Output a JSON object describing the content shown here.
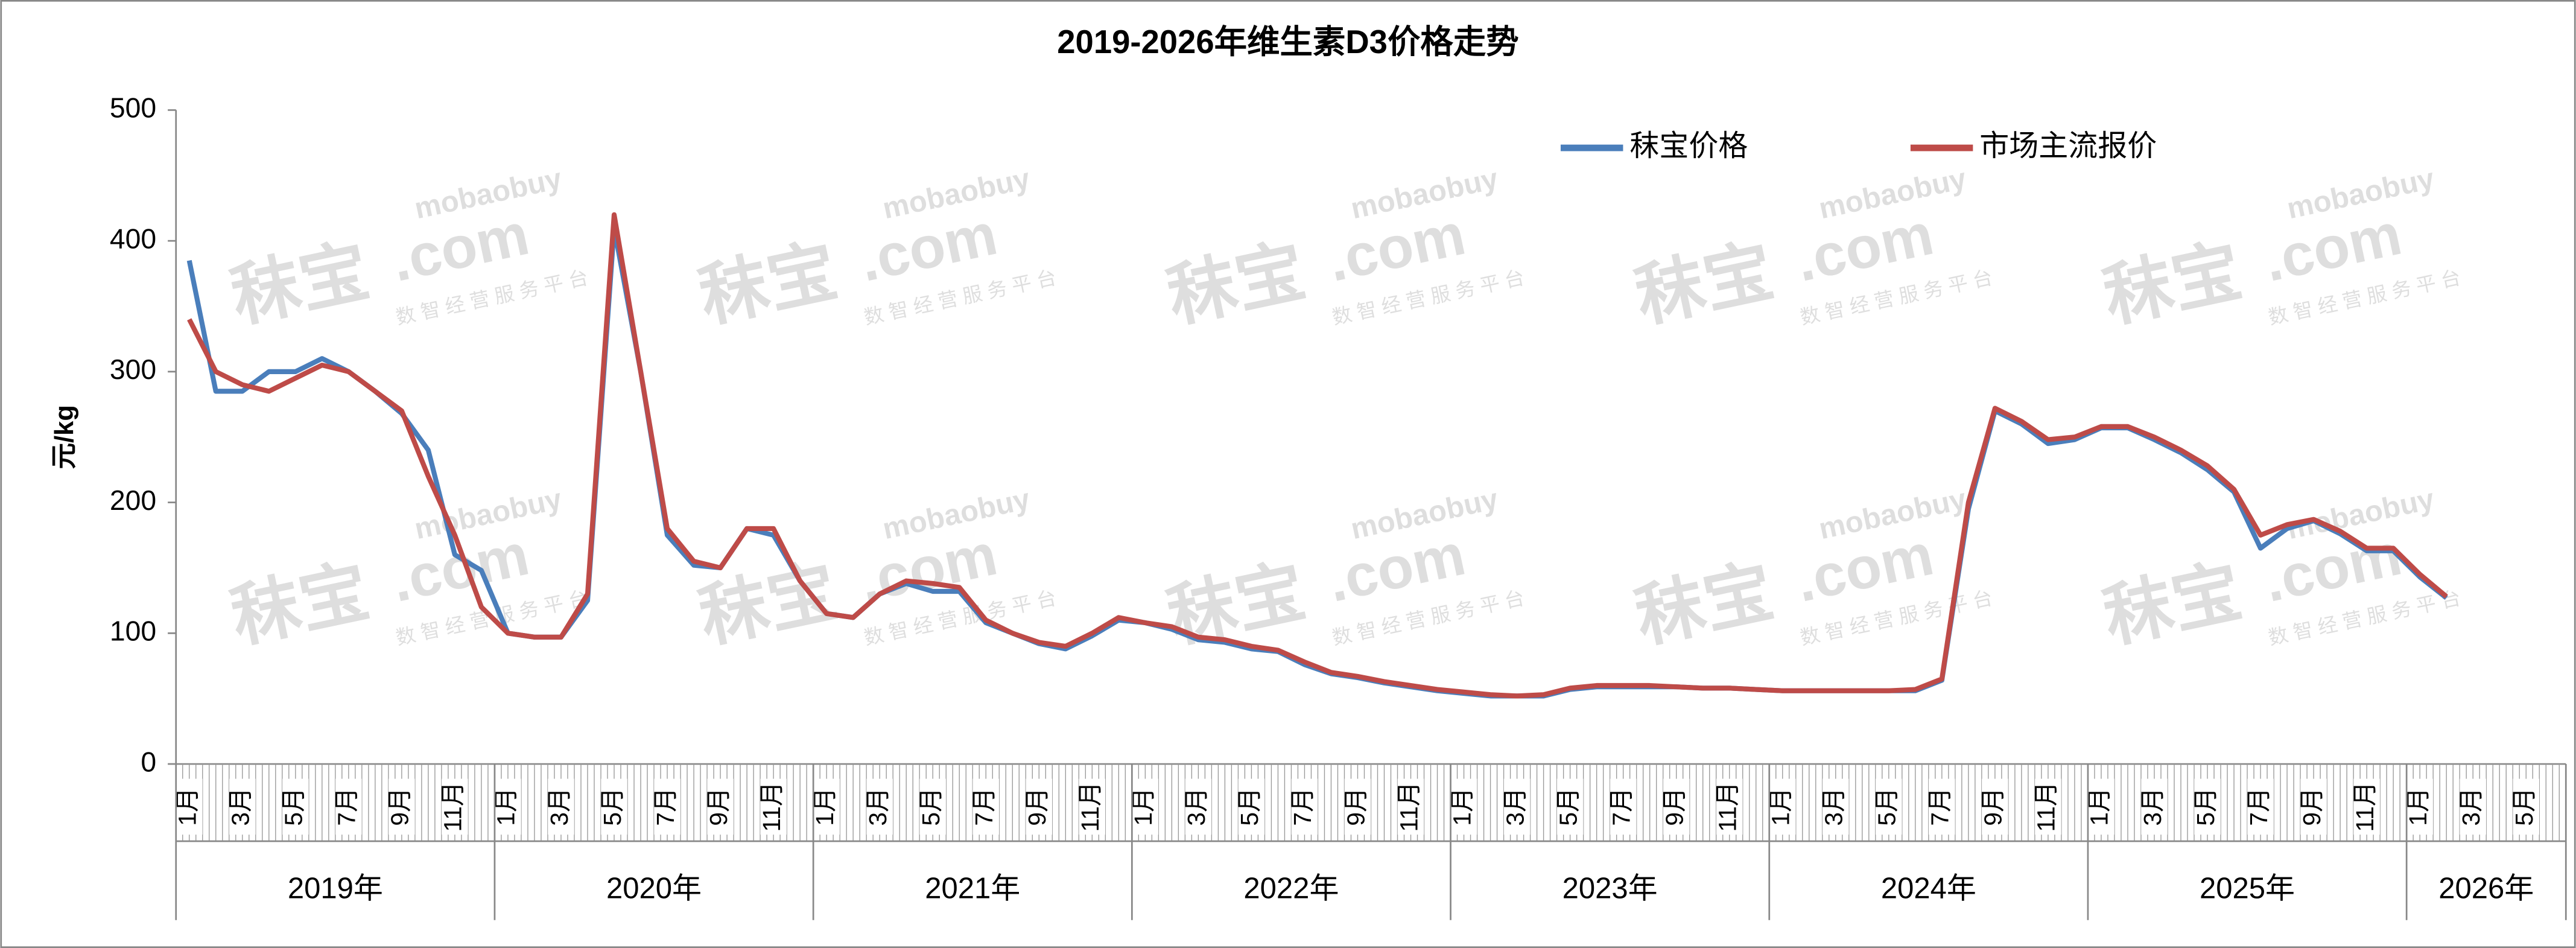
{
  "chart_data": {
    "type": "line",
    "title": "2019-2026年维生素D3价格走势",
    "y_label": "元/kg",
    "ylim": [
      0,
      500
    ],
    "yticks": [
      0,
      100,
      200,
      300,
      400,
      500
    ],
    "legend": "top-right",
    "categories": [
      "1月",
      null,
      "3月",
      null,
      "5月",
      null,
      "7月",
      null,
      "9月",
      null,
      "11月",
      null,
      "1月",
      null,
      "3月",
      null,
      "5月",
      null,
      "7月",
      null,
      "9月",
      null,
      "11月",
      null,
      "1月",
      null,
      "3月",
      null,
      "5月",
      null,
      "7月",
      null,
      "9月",
      null,
      "11月",
      null,
      "1月",
      null,
      "3月",
      null,
      "5月",
      null,
      "7月",
      null,
      "9月",
      null,
      "11月",
      null,
      "1月",
      null,
      "3月",
      null,
      "5月",
      null,
      "7月",
      null,
      "9月",
      null,
      "11月",
      null,
      "1月",
      null,
      "3月",
      null,
      "5月",
      null,
      "7月",
      null,
      "9月",
      null,
      "11月",
      null,
      "1月",
      null,
      "3月",
      null,
      "5月",
      null,
      "7月",
      null,
      "9月",
      null,
      "11月",
      null,
      "1月",
      null,
      "3月",
      null,
      "5月",
      null
    ],
    "x_groups": [
      {
        "label": "2019年",
        "span": 12
      },
      {
        "label": "2020年",
        "span": 12
      },
      {
        "label": "2021年",
        "span": 12
      },
      {
        "label": "2022年",
        "span": 12
      },
      {
        "label": "2023年",
        "span": 12
      },
      {
        "label": "2024年",
        "span": 12
      },
      {
        "label": "2025年",
        "span": 12
      },
      {
        "label": "2026年",
        "span": 6
      }
    ],
    "series": [
      {
        "name": "秣宝价格",
        "color": "#4a7ebb",
        "values": [
          385,
          285,
          285,
          300,
          300,
          310,
          300,
          285,
          268,
          240,
          160,
          148,
          100,
          97,
          97,
          125,
          410,
          300,
          175,
          152,
          150,
          180,
          175,
          140,
          115,
          112,
          130,
          138,
          132,
          132,
          108,
          100,
          92,
          88,
          98,
          110,
          108,
          103,
          95,
          93,
          88,
          86,
          76,
          69,
          66,
          62,
          59,
          56,
          54,
          52,
          52,
          52,
          57,
          59,
          59,
          59,
          59,
          58,
          58,
          57,
          56,
          56,
          56,
          56,
          56,
          56,
          64,
          195,
          270,
          260,
          245,
          248,
          257,
          257,
          248,
          238,
          225,
          208,
          165,
          180,
          186,
          176,
          163,
          163,
          143,
          127,
          null,
          null,
          null,
          null
        ]
      },
      {
        "name": "市场主流报价",
        "color": "#be4b48",
        "values": [
          340,
          300,
          290,
          285,
          295,
          305,
          300,
          285,
          270,
          220,
          175,
          120,
          100,
          97,
          97,
          130,
          420,
          300,
          180,
          155,
          150,
          180,
          180,
          140,
          115,
          112,
          130,
          140,
          138,
          135,
          110,
          100,
          93,
          90,
          100,
          112,
          108,
          105,
          97,
          95,
          90,
          87,
          78,
          70,
          67,
          63,
          60,
          57,
          55,
          53,
          52,
          53,
          58,
          60,
          60,
          60,
          59,
          58,
          58,
          57,
          56,
          56,
          56,
          56,
          56,
          57,
          65,
          200,
          272,
          262,
          248,
          250,
          258,
          258,
          250,
          240,
          228,
          210,
          175,
          183,
          187,
          178,
          165,
          165,
          145,
          128,
          null,
          null,
          null,
          null
        ]
      }
    ],
    "watermark": {
      "brand": "秣宝",
      "domain": ".com",
      "site": "mobaobuy",
      "slogan": "数 智 经 营 服 务 平 台"
    }
  }
}
